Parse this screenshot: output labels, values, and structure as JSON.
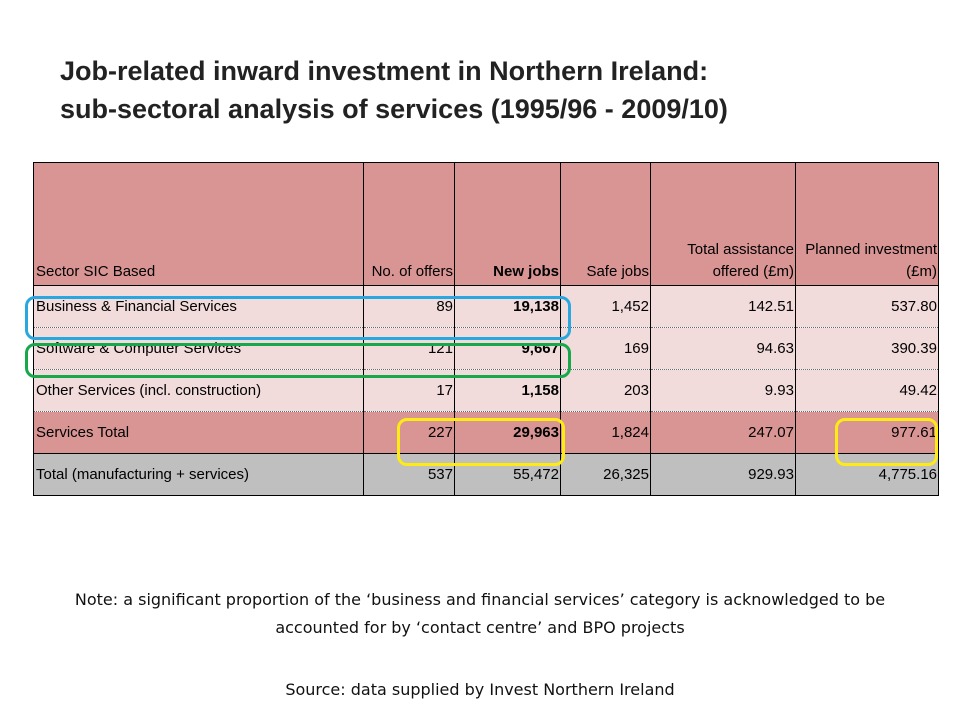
{
  "title": {
    "line1": "Job-related inward investment in Northern Ireland:",
    "line2": "sub-sectoral analysis of services (1995/96 - 2009/10)"
  },
  "table": {
    "headers": [
      "Sector SIC Based",
      "No. of offers",
      "New jobs",
      "Safe jobs",
      "Total assistance offered (£m)",
      "Planned investment (£m)"
    ],
    "rows": [
      [
        "Business & Financial Services",
        "89",
        "19,138",
        "1,452",
        "142.51",
        "537.80"
      ],
      [
        "Software & Computer Services",
        "121",
        "9,667",
        "169",
        "94.63",
        "390.39"
      ],
      [
        "Other Services (incl. construction)",
        "17",
        "1,158",
        "203",
        "9.93",
        "49.42"
      ],
      [
        "Services Total",
        "227",
        "29,963",
        "1,824",
        "247.07",
        "977.61"
      ],
      [
        "Total (manufacturing + services)",
        "537",
        "55,472",
        "26,325",
        "929.93",
        "4,775.16"
      ]
    ]
  },
  "colors": {
    "header_fill": "#d99594",
    "row_fill": "#f2dcdb",
    "grand_total_fill": "#bfbfbf",
    "highlight_blue": "#29a8e0",
    "highlight_green": "#18a84c",
    "highlight_yellow": "#ffeb14"
  },
  "note": "Note: a significant proportion of the ‘business and financial services’ category is acknowledged to be accounted for by ‘contact centre’ and BPO projects",
  "source": "Source: data supplied by Invest Northern Ireland"
}
